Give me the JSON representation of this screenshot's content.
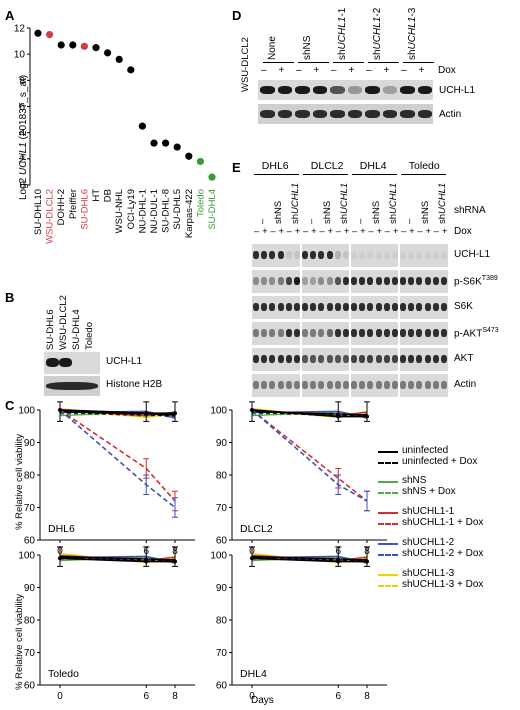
{
  "panels": {
    "A": "A",
    "B": "B",
    "C": "C",
    "D": "D",
    "E": "E"
  },
  "panelA": {
    "ylabel": "Log2 UCHL1 (201837_s_at)",
    "ylabel_parts": [
      "Log2 ",
      "UCHL1",
      " (201837_s_at)"
    ],
    "yticks": [
      "0",
      "2",
      "4",
      "6",
      "8",
      "10",
      "12"
    ],
    "cell_lines": [
      {
        "name": "SU-DHL10",
        "value": 11.6,
        "color": "#000000"
      },
      {
        "name": "WSU-DLCL2",
        "value": 11.5,
        "color": "#d43c3c"
      },
      {
        "name": "DOHH-2",
        "value": 10.7,
        "color": "#000000"
      },
      {
        "name": "Pfeiffer",
        "value": 10.7,
        "color": "#000000"
      },
      {
        "name": "SU-DHL6",
        "value": 10.6,
        "color": "#d43c3c"
      },
      {
        "name": "HT",
        "value": 10.5,
        "color": "#000000"
      },
      {
        "name": "DB",
        "value": 10.1,
        "color": "#000000"
      },
      {
        "name": "WSU-NHL",
        "value": 9.6,
        "color": "#000000"
      },
      {
        "name": "OCI-Ly19",
        "value": 8.8,
        "color": "#000000"
      },
      {
        "name": "NU-DHL-1",
        "value": 4.5,
        "color": "#000000"
      },
      {
        "name": "NU-DUL-1",
        "value": 3.2,
        "color": "#000000"
      },
      {
        "name": "SU-DHL-8",
        "value": 3.2,
        "color": "#000000"
      },
      {
        "name": "SU-DHL5",
        "value": 2.9,
        "color": "#000000"
      },
      {
        "name": "Karpas-422",
        "value": 2.2,
        "color": "#000000"
      },
      {
        "name": "Toledo",
        "value": 1.8,
        "color": "#3a9a3a"
      },
      {
        "name": "SU-DHL4",
        "value": 0.6,
        "color": "#3a9a3a"
      }
    ]
  },
  "panelB": {
    "cell_lines": [
      "SU-DHL6",
      "WSU-DLCL2",
      "SU-DHL4",
      "Toledo"
    ],
    "rows": [
      "UCH-L1",
      "Histone H2B"
    ]
  },
  "panelC": {
    "ylabel": "% Relative cell viability",
    "xlabel": "Days",
    "xticks": [
      "0",
      "6",
      "8"
    ],
    "yticks": [
      "60",
      "70",
      "80",
      "90",
      "100"
    ],
    "legend": [
      {
        "label": "uninfected",
        "color": "#000000",
        "dashed": false
      },
      {
        "label": "uninfected + Dox",
        "color": "#000000",
        "dashed": true
      },
      {
        "label": "shNS",
        "color": "#4caf3e",
        "dashed": false
      },
      {
        "label": "shNS + Dox",
        "color": "#4caf3e",
        "dashed": true
      },
      {
        "label": "shUCHL1-1",
        "color": "#d32f2f",
        "dashed": false
      },
      {
        "label": "shUCHL1-1 + Dox",
        "color": "#d32f2f",
        "dashed": true
      },
      {
        "label": "shUCHL1-2",
        "color": "#3f51b5",
        "dashed": false
      },
      {
        "label": "shUCHL1-2 + Dox",
        "color": "#3f51b5",
        "dashed": true
      },
      {
        "label": "shUCHL1-3",
        "color": "#e8d600",
        "dashed": false
      },
      {
        "label": "shUCHL1-3 + Dox",
        "color": "#e8d600",
        "dashed": true
      }
    ],
    "subplots": [
      {
        "name": "DHL6",
        "drops": [
          82,
          77
        ]
      },
      {
        "name": "DLCL2",
        "drops": [
          79,
          77
        ]
      },
      {
        "name": "Toledo",
        "drops": null
      },
      {
        "name": "DHL4",
        "drops": null
      }
    ]
  },
  "chart_data": {
    "type": "line",
    "xlabel": "Days",
    "ylabel": "% Relative cell viability",
    "x": [
      0,
      6,
      8
    ],
    "ylim": [
      60,
      100
    ],
    "panels": [
      {
        "name": "DHL6",
        "series": [
          {
            "name": "shUCHL1-1 + Dox",
            "values": [
              100,
              82,
              72
            ]
          },
          {
            "name": "shUCHL1-2 + Dox",
            "values": [
              100,
              77,
              70
            ]
          },
          {
            "name": "uninfected",
            "values": [
              100,
              99,
              99
            ]
          }
        ]
      },
      {
        "name": "DLCL2",
        "series": [
          {
            "name": "shUCHL1-1 + Dox",
            "values": [
              100,
              79,
              72
            ]
          },
          {
            "name": "shUCHL1-2 + Dox",
            "values": [
              100,
              77,
              72
            ]
          },
          {
            "name": "uninfected",
            "values": [
              100,
              98,
              98
            ]
          }
        ]
      },
      {
        "name": "Toledo",
        "series": [
          {
            "name": "uninfected",
            "values": [
              99,
              98,
              98
            ]
          }
        ]
      },
      {
        "name": "DHL4",
        "series": [
          {
            "name": "uninfected",
            "values": [
              99,
              98,
              98
            ]
          }
        ]
      }
    ]
  },
  "panelD": {
    "cell_line": "WSU-DLCL2",
    "groups": [
      "None",
      "shNS",
      "shUCHL1-1",
      "shUCHL1-2",
      "shUCHL1-3"
    ],
    "group_parts": [
      [
        "None"
      ],
      [
        "shNS"
      ],
      [
        "sh",
        "UCHL1",
        "-1"
      ],
      [
        "sh",
        "UCHL1",
        "-2"
      ],
      [
        "sh",
        "UCHL1",
        "-3"
      ]
    ],
    "dox_label": "Dox",
    "dox_marks": [
      "–",
      "+"
    ],
    "rows": [
      "UCH-L1",
      "Actin"
    ]
  },
  "panelE": {
    "cell_lines": [
      "DHL6",
      "DLCL2",
      "DHL4",
      "Toledo"
    ],
    "lanes": [
      "–",
      "shNS",
      "shUCHL1"
    ],
    "lane_parts": [
      [
        "–"
      ],
      [
        "shNS"
      ],
      [
        "sh",
        "UCHL1"
      ]
    ],
    "shrna_label": "shRNA",
    "dox_label": "Dox",
    "dox_marks": [
      "–",
      "+"
    ],
    "rows": [
      {
        "label": "UCH-L1",
        "sup": ""
      },
      {
        "label": "p-S6K",
        "sup": "T389"
      },
      {
        "label": "S6K",
        "sup": ""
      },
      {
        "label": "p-AKT",
        "sup": "S473"
      },
      {
        "label": "AKT",
        "sup": ""
      },
      {
        "label": "Actin",
        "sup": ""
      }
    ]
  }
}
